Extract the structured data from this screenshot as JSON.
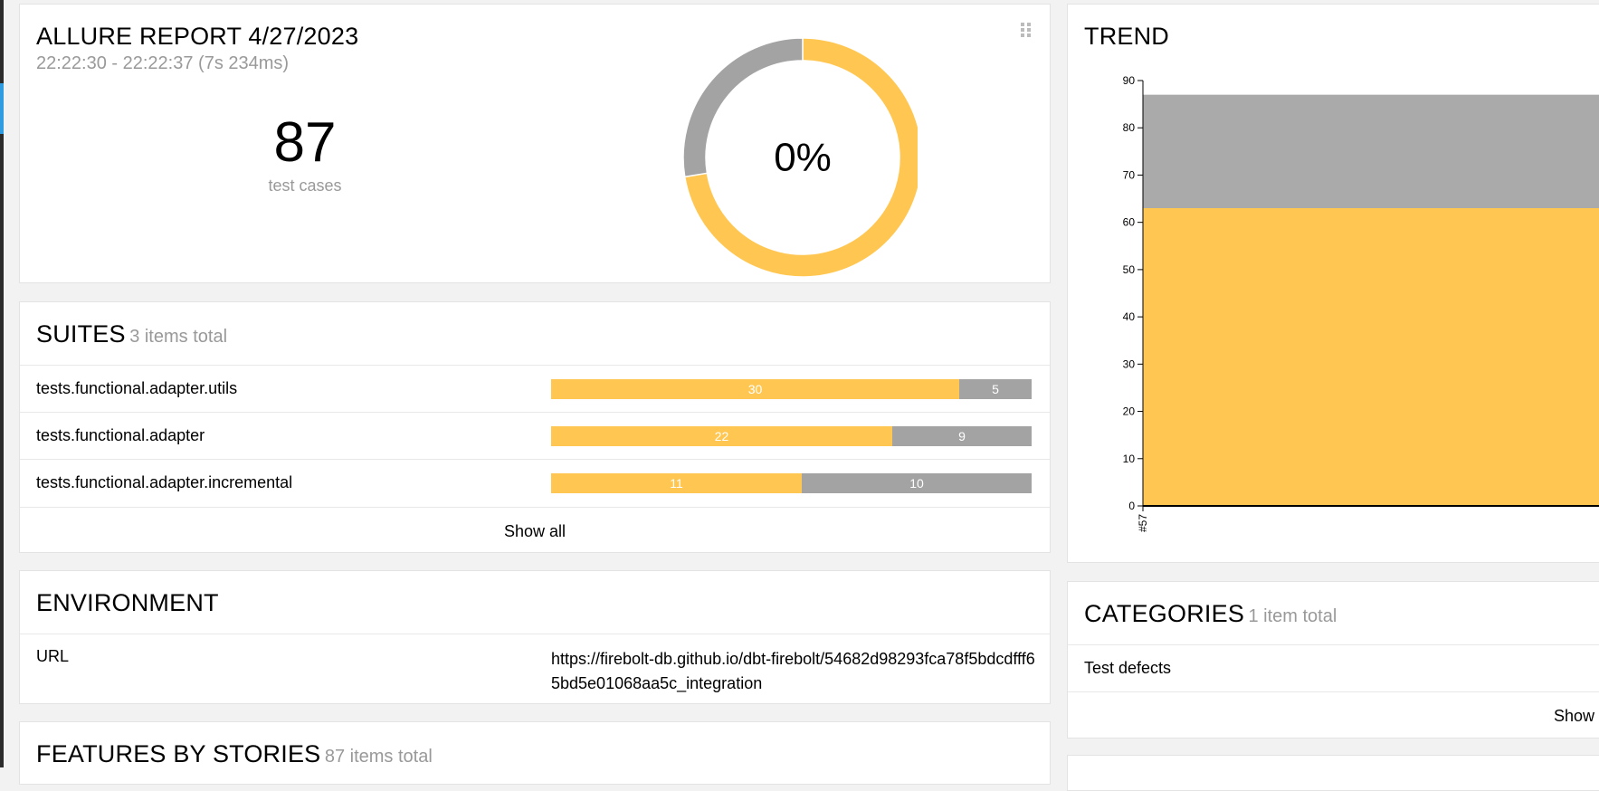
{
  "summary": {
    "title": "ALLURE REPORT 4/27/2023",
    "date_range": "22:22:30 - 22:22:37 (7s 234ms)",
    "test_count": "87",
    "test_count_label": "test cases",
    "success_rate": "0%",
    "statistic": {
      "broken": 63,
      "skipped": 24
    }
  },
  "suites": {
    "title": "SUITES",
    "subtitle": "3 items total",
    "items": [
      {
        "name": "tests.functional.adapter.utils",
        "broken": "30",
        "skipped": "5"
      },
      {
        "name": "tests.functional.adapter",
        "broken": "22",
        "skipped": "9"
      },
      {
        "name": "tests.functional.adapter.incremental",
        "broken": "11",
        "skipped": "10"
      }
    ],
    "show_all": "Show all"
  },
  "environment": {
    "title": "ENVIRONMENT",
    "rows": [
      {
        "key": "URL",
        "value": "https://firebolt-db.github.io/dbt-firebolt/54682d98293fca78f5bdcdfff65bd5e01068aa5c_integration"
      }
    ]
  },
  "features": {
    "title": "FEATURES BY STORIES",
    "subtitle": "87 items total"
  },
  "trend": {
    "title": "TREND"
  },
  "categories": {
    "title": "CATEGORIES",
    "subtitle": "1 item total",
    "items": [
      {
        "name": "Test defects"
      }
    ],
    "show_all": "Show all"
  },
  "colors": {
    "broken": "#ffc752",
    "skipped": "#a3a3a3",
    "accent": "#2f9be0"
  },
  "chart_data": {
    "type": "area",
    "title": "TREND",
    "x": [
      "#57"
    ],
    "ylim": [
      0,
      90
    ],
    "yticks": [
      0,
      10,
      20,
      30,
      40,
      50,
      60,
      70,
      80,
      90
    ],
    "series": [
      {
        "name": "broken",
        "values": [
          63
        ],
        "color": "#ffc752"
      },
      {
        "name": "skipped",
        "values": [
          24
        ],
        "color": "#aaaaaa"
      }
    ]
  }
}
